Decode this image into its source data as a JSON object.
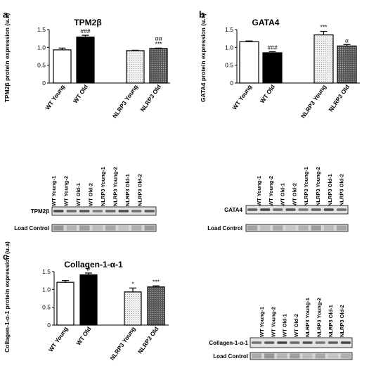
{
  "chart_data": [
    {
      "panel_letter": "a",
      "type": "bar",
      "title": "TPM2β",
      "ylabel": "TPM2β protein expression (u.a)",
      "ylim": [
        0,
        1.5
      ],
      "yticks": [
        "0",
        "0.5",
        "1.0",
        "1.5"
      ],
      "categories": [
        "WT Young",
        "WT Old",
        "NLRP3 Young",
        "NLRP3 Old"
      ],
      "values": [
        0.93,
        1.29,
        0.91,
        0.97
      ],
      "errors": [
        0.05,
        0.05,
        0.01,
        0.01
      ],
      "annotations": [
        "",
        "###",
        "",
        "αα\n***"
      ],
      "blot": {
        "lanes": [
          "WT Young-1",
          "WT Young-2",
          "WT Old-1",
          "WT Old-2",
          "NLRP3 Young-1",
          "NLRP3 Young-2",
          "NLRP3 Old-1",
          "NLRP3 Old-2"
        ],
        "rows": [
          "TPM2β",
          "Load Control"
        ]
      }
    },
    {
      "panel_letter": "b",
      "type": "bar",
      "title": "GATA4",
      "ylabel": "GATA4 protein expression (u.a)",
      "ylim": [
        0,
        1.5
      ],
      "yticks": [
        "0",
        "0.5",
        "1.0",
        "1.5"
      ],
      "categories": [
        "WT Young",
        "WT Old",
        "NLRP3 Young",
        "NLRP3 Old"
      ],
      "values": [
        1.16,
        0.85,
        1.35,
        1.04
      ],
      "errors": [
        0.02,
        0.03,
        0.1,
        0.04
      ],
      "annotations": [
        "",
        "###",
        "***",
        "α"
      ],
      "blot": {
        "lanes": [
          "WT Young-1",
          "WT Young-2",
          "WT Old-1",
          "WT Old-2",
          "NLRP3 Young-1",
          "NLRP3 Young-2",
          "NLRP3 Old-1",
          "NLRP3 Old-2"
        ],
        "rows": [
          "GATA4",
          "Load Control"
        ]
      }
    },
    {
      "panel_letter": "c",
      "type": "bar",
      "title": "Collagen-1-α-1",
      "ylabel": "Collagen-1-α-1 protein expression (u.a)",
      "ylim": [
        0,
        1.5
      ],
      "yticks": [
        "0",
        "0.5",
        "1.0",
        "1.5"
      ],
      "categories": [
        "WT Young",
        "WT Old",
        "NLRP3 Young",
        "NLRP3 Old"
      ],
      "values": [
        1.2,
        1.41,
        0.93,
        1.07
      ],
      "errors": [
        0.05,
        0.05,
        0.11,
        0.03
      ],
      "annotations": [
        "",
        "#",
        "*",
        "***"
      ],
      "blot": {
        "lanes": [
          "WT Young-1",
          "WT Young-2",
          "WT Old-1",
          "WT Old-2",
          "NLRP3 Young-1",
          "NLRP3 Young-2",
          "NLRP3 Old-1",
          "NLRP3 Old-2"
        ],
        "rows": [
          "Collagen-1-α-1",
          "Load Control"
        ]
      }
    }
  ],
  "colors": {
    "wt_young": "#ffffff",
    "wt_old": "#000000",
    "nlrp3_young": "#f0f0f0",
    "nlrp3_old": "#555555",
    "stroke": "#000000"
  }
}
